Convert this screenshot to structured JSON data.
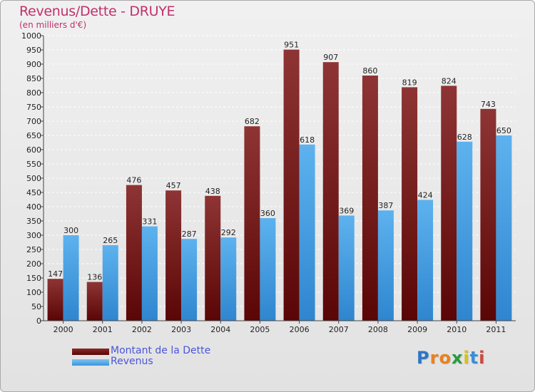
{
  "title": "Revenus/Dette - DRUYE",
  "subtitle": "(en milliers d'€)",
  "chart_data": {
    "type": "bar",
    "categories": [
      "2000",
      "2001",
      "2002",
      "2003",
      "2004",
      "2005",
      "2006",
      "2007",
      "2008",
      "2009",
      "2010",
      "2011"
    ],
    "series": [
      {
        "name": "Montant de la Dette",
        "color": "#7a1f1f",
        "values": [
          147,
          136,
          476,
          457,
          438,
          682,
          951,
          907,
          860,
          819,
          824,
          743
        ]
      },
      {
        "name": "Revenus",
        "color": "#4aa3e6",
        "values": [
          300,
          265,
          331,
          287,
          292,
          360,
          618,
          369,
          387,
          424,
          628,
          650
        ]
      }
    ],
    "ylim": [
      0,
      1000
    ],
    "ytick_step": 50,
    "yticks": [
      "0",
      "50",
      "100",
      "150",
      "200",
      "250",
      "300",
      "350",
      "400",
      "450",
      "500",
      "550",
      "600",
      "650",
      "700",
      "750",
      "800",
      "850",
      "900",
      "950",
      "1000"
    ],
    "grid": true,
    "legend_position": "bottom-left"
  },
  "legend": {
    "dette_label": "Montant de la Dette",
    "revenus_label": "Revenus"
  },
  "logo": {
    "letters": [
      "P",
      "r",
      "o",
      "x",
      "i",
      "t",
      "i"
    ],
    "colors": [
      "#2e76c4",
      "#e8821e",
      "#e8821e",
      "#2a9b3c",
      "#d6c11c",
      "#3a8fd8",
      "#c94a3f"
    ]
  }
}
